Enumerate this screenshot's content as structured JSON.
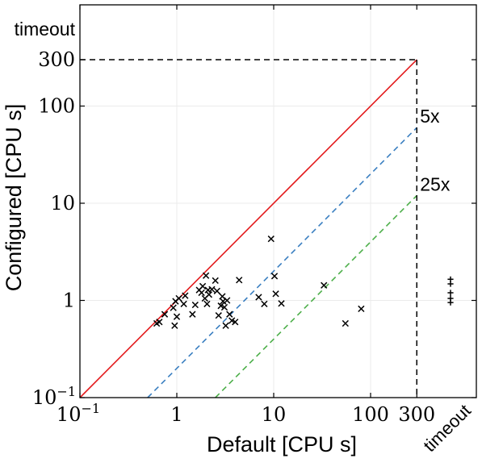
{
  "chart_data": {
    "type": "scatter",
    "xlabel": "Default [CPU s]",
    "ylabel": "Configured [CPU s]",
    "x_scale": "log",
    "y_scale": "log",
    "xlim": [
      0.1,
      1000
    ],
    "ylim": [
      0.1,
      2000
    ],
    "grid": true,
    "x_ticks": [
      {
        "value": 0.1,
        "base": "10",
        "exp": "−1"
      },
      {
        "value": 1,
        "label": "1"
      },
      {
        "value": 10,
        "label": "10"
      },
      {
        "value": 100,
        "label": "100"
      },
      {
        "value": 300,
        "label": "300"
      },
      {
        "value": 750,
        "label": "timeout"
      }
    ],
    "y_ticks": [
      {
        "value": 0.1,
        "base": "10",
        "exp": "−1"
      },
      {
        "value": 1,
        "label": "1"
      },
      {
        "value": 10,
        "label": "10"
      },
      {
        "value": 100,
        "label": "100"
      },
      {
        "value": 300,
        "label": "300"
      },
      {
        "value": 1000,
        "label": "timeout"
      }
    ],
    "timeout_value": 300,
    "reference_lines": [
      {
        "label": "",
        "factor": 1,
        "color": "#e31a1c",
        "dash": false
      },
      {
        "label": "5x",
        "factor": 5,
        "color": "#3a7fc1",
        "dash": true
      },
      {
        "label": "25x",
        "factor": 25,
        "color": "#4daf4a",
        "dash": true
      }
    ],
    "timeout_line_color": "#000000",
    "marker_color": "#000000",
    "points": [
      [
        0.62,
        0.58
      ],
      [
        0.66,
        0.6
      ],
      [
        0.75,
        0.72
      ],
      [
        0.92,
        0.84
      ],
      [
        0.95,
        0.55
      ],
      [
        0.97,
        0.98
      ],
      [
        1.0,
        0.68
      ],
      [
        1.05,
        1.05
      ],
      [
        1.18,
        0.92
      ],
      [
        1.22,
        1.12
      ],
      [
        1.45,
        0.72
      ],
      [
        1.55,
        0.9
      ],
      [
        1.7,
        1.28
      ],
      [
        1.8,
        1.2
      ],
      [
        1.85,
        1.4
      ],
      [
        1.95,
        1.05
      ],
      [
        2.0,
        1.8
      ],
      [
        2.05,
        0.92
      ],
      [
        2.1,
        1.28
      ],
      [
        2.15,
        1.15
      ],
      [
        2.3,
        1.3
      ],
      [
        2.5,
        1.6
      ],
      [
        2.6,
        1.25
      ],
      [
        2.7,
        0.7
      ],
      [
        2.85,
        0.88
      ],
      [
        2.95,
        1.1
      ],
      [
        3.0,
        0.98
      ],
      [
        3.1,
        0.85
      ],
      [
        3.2,
        0.55
      ],
      [
        3.3,
        1.0
      ],
      [
        3.5,
        0.72
      ],
      [
        3.7,
        0.62
      ],
      [
        4.0,
        0.6
      ],
      [
        4.4,
        1.62
      ],
      [
        7.0,
        1.08
      ],
      [
        8.0,
        0.92
      ],
      [
        9.4,
        4.3
      ],
      [
        10.2,
        1.78
      ],
      [
        10.5,
        1.17
      ],
      [
        12.0,
        0.93
      ],
      [
        33.0,
        1.43
      ],
      [
        55.0,
        0.58
      ],
      [
        80.0,
        0.82
      ]
    ],
    "timeout_points": [
      [
        750,
        1.65
      ],
      [
        750,
        1.48
      ],
      [
        750,
        1.2
      ],
      [
        750,
        1.05
      ],
      [
        750,
        0.95
      ]
    ]
  }
}
